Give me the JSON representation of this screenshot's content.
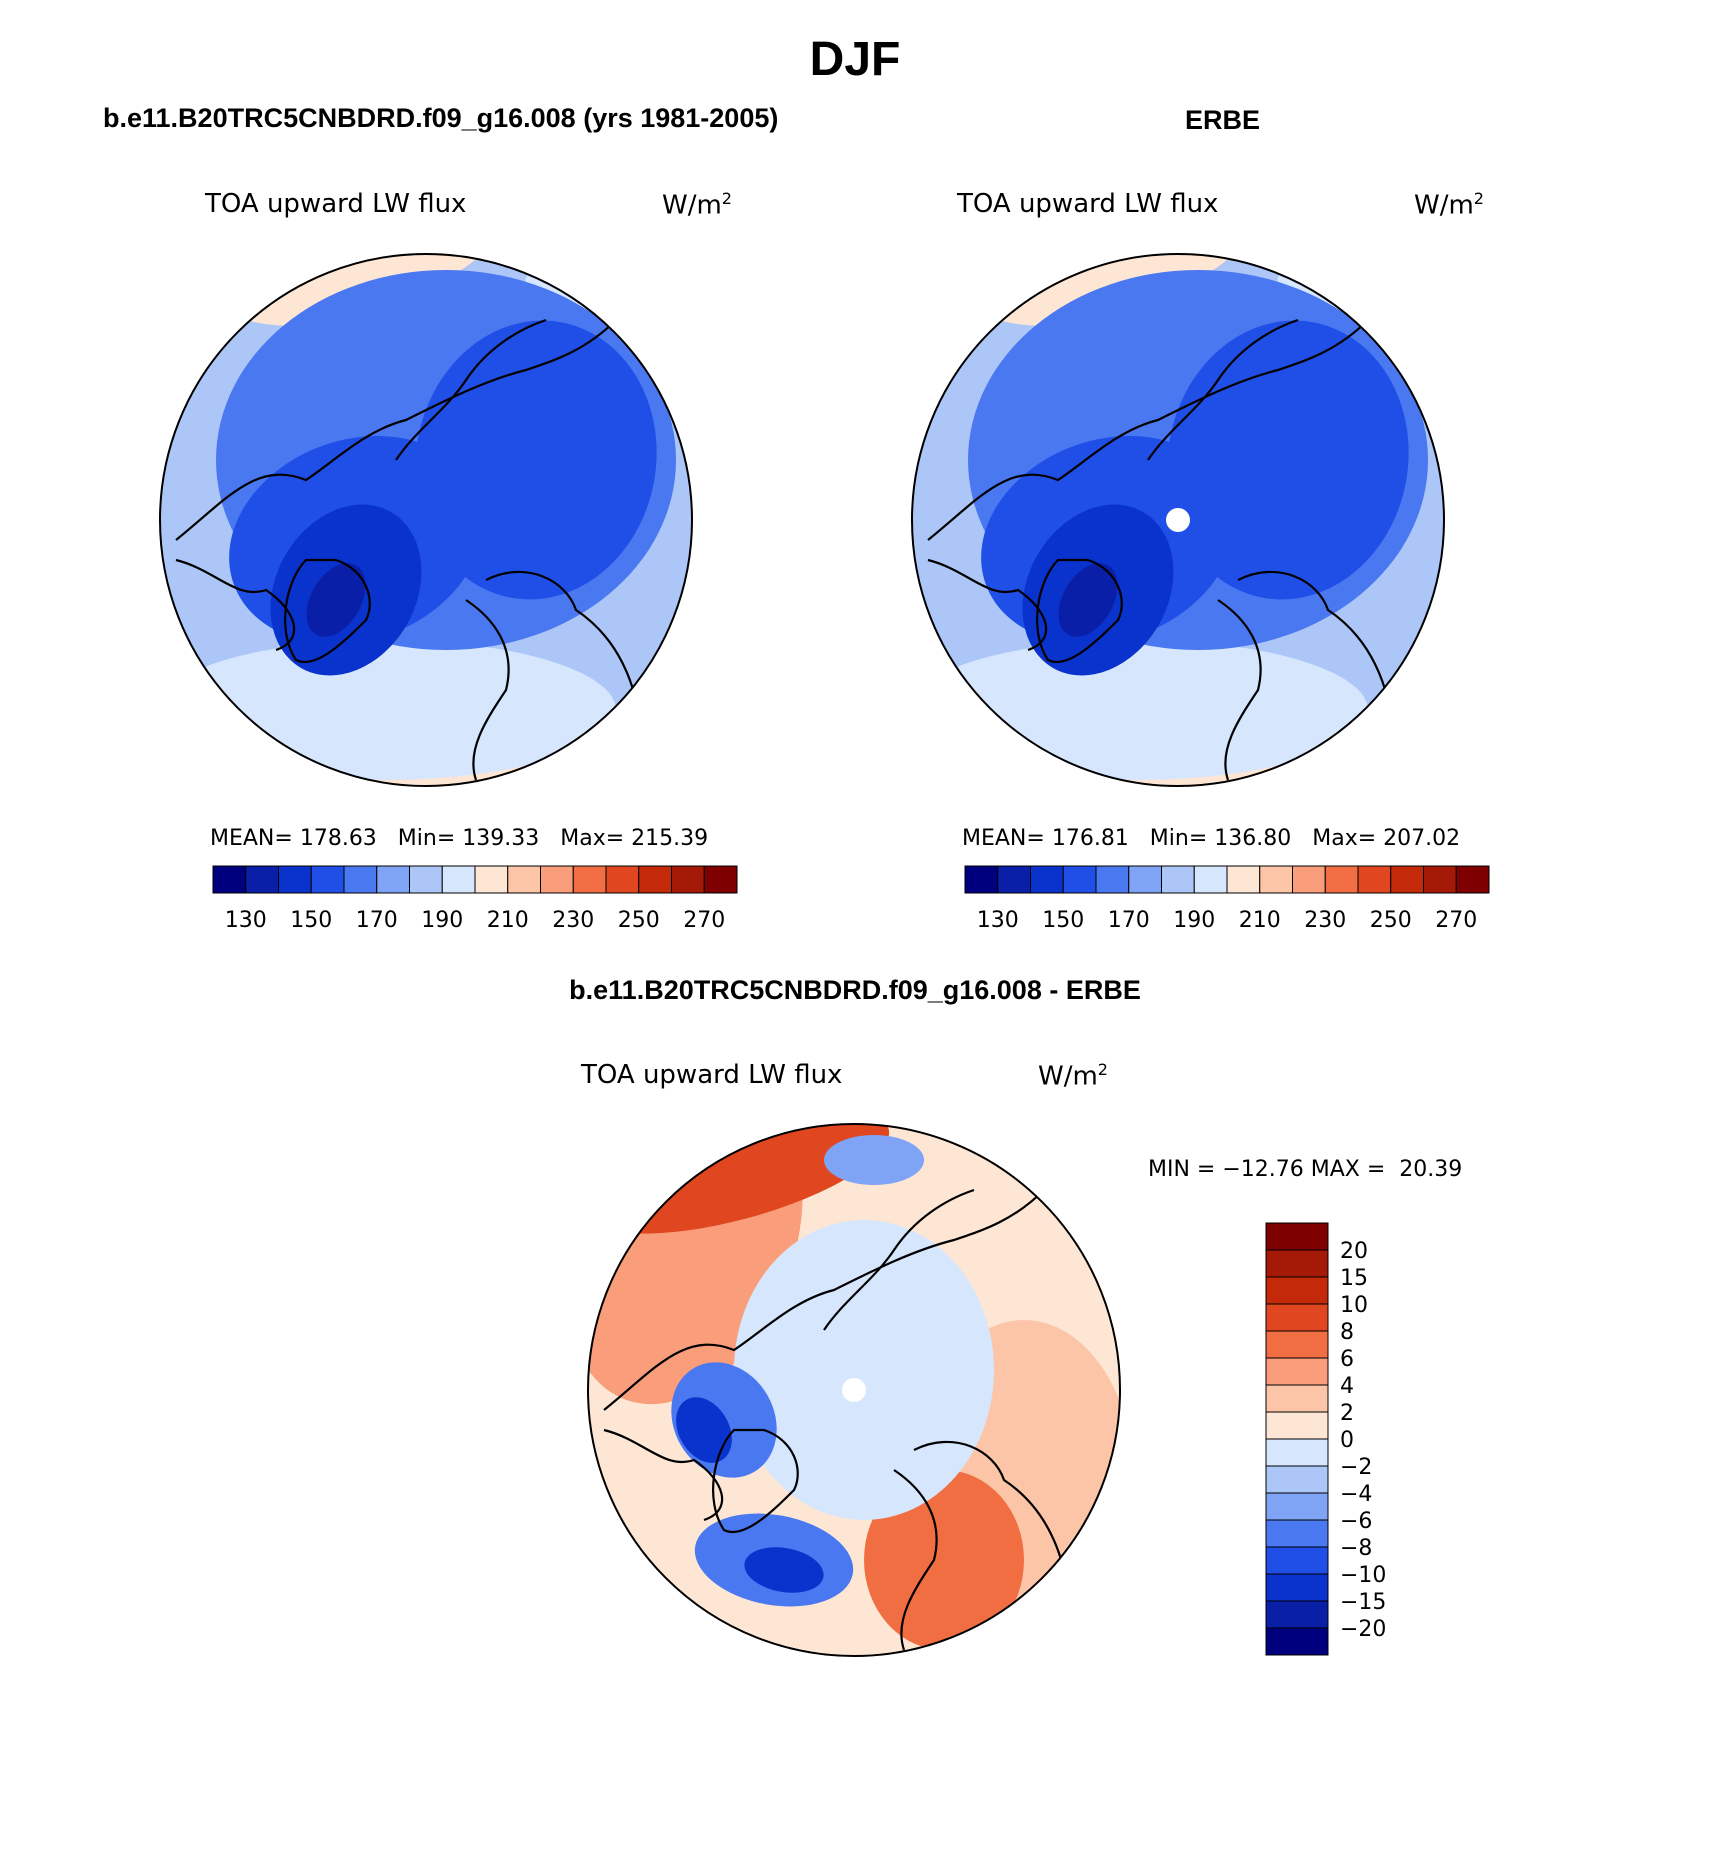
{
  "page": {
    "title": "DJF"
  },
  "colors": {
    "scale": [
      "#00007f",
      "#0a1fa8",
      "#0a32cc",
      "#1f4fe6",
      "#4a78f0",
      "#7fa3f5",
      "#adc6f8",
      "#d6e6fc",
      "#fde6d4",
      "#fcc5a8",
      "#f99d7a",
      "#f06e42",
      "#e0461f",
      "#c42a0a",
      "#a51907",
      "#7f0000"
    ],
    "ocean_low": "#adc6f8",
    "coast": "#000000"
  },
  "chart_data": [
    {
      "type": "heatmap",
      "panel": "model",
      "title": "b.e11.B20TRC5CNBDRD.f09_g16.008 (yrs 1981-2005)",
      "variable": "TOA upward LW flux",
      "units": "W/m",
      "units_sup": "2",
      "stats": {
        "mean_label": "MEAN=",
        "mean": "178.63",
        "min_label": "Min=",
        "min": "139.33",
        "max_label": "Max=",
        "max": "215.39"
      },
      "colorbar": {
        "levels": [
          130,
          140,
          150,
          160,
          170,
          180,
          190,
          200,
          210,
          220,
          230,
          240,
          250,
          260,
          270
        ],
        "tick_labels": [
          "130",
          "150",
          "170",
          "190",
          "210",
          "230",
          "250",
          "270"
        ]
      },
      "projection": "north-polar-stereographic"
    },
    {
      "type": "heatmap",
      "panel": "obs",
      "title": "ERBE",
      "variable": "TOA upward LW flux",
      "units": "W/m",
      "units_sup": "2",
      "stats": {
        "mean_label": "MEAN=",
        "mean": "176.81",
        "min_label": "Min=",
        "min": "136.80",
        "max_label": "Max=",
        "max": "207.02"
      },
      "colorbar": {
        "levels": [
          130,
          140,
          150,
          160,
          170,
          180,
          190,
          200,
          210,
          220,
          230,
          240,
          250,
          260,
          270
        ],
        "tick_labels": [
          "130",
          "150",
          "170",
          "190",
          "210",
          "230",
          "250",
          "270"
        ]
      },
      "projection": "north-polar-stereographic"
    },
    {
      "type": "heatmap",
      "panel": "diff",
      "title": "b.e11.B20TRC5CNBDRD.f09_g16.008 - ERBE",
      "variable": "TOA upward LW flux",
      "units": "W/m",
      "units_sup": "2",
      "stats_text": "MIN = −12.76 MAX =  20.39",
      "colorbar": {
        "levels": [
          -20,
          -15,
          -10,
          -8,
          -6,
          -4,
          -2,
          0,
          2,
          4,
          6,
          8,
          10,
          15,
          20
        ],
        "tick_labels": [
          "20",
          "15",
          "10",
          "8",
          "6",
          "4",
          "2",
          "0",
          "−2",
          "−4",
          "−6",
          "−8",
          "−10",
          "−15",
          "−20"
        ]
      },
      "projection": "north-polar-stereographic"
    }
  ]
}
